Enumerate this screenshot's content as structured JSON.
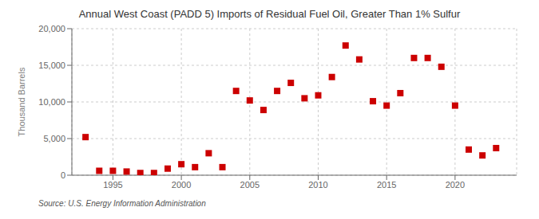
{
  "chart_data": {
    "type": "scatter",
    "title": "Annual West Coast (PADD 5) Imports of Residual Fuel Oil, Greater Than 1% Sulfur",
    "y_label": "Thousand Barrels",
    "annotations": [
      "Source: U.S. Energy Information Administration"
    ],
    "x": [
      1993,
      1994,
      1995,
      1996,
      1997,
      1998,
      1999,
      2000,
      2001,
      2002,
      2003,
      2004,
      2005,
      2006,
      2007,
      2008,
      2009,
      2010,
      2011,
      2012,
      2013,
      2014,
      2015,
      2016,
      2017,
      2018,
      2019,
      2020,
      2021,
      2022,
      2023
    ],
    "values": [
      5200,
      600,
      600,
      500,
      300,
      300,
      900,
      1500,
      1100,
      3000,
      1100,
      11500,
      10200,
      8900,
      11500,
      12600,
      10500,
      10900,
      13400,
      17700,
      15800,
      10100,
      9500,
      11200,
      16000,
      16000,
      14800,
      9500,
      3500,
      2700,
      3700
    ],
    "color": "#cc0000",
    "marker": "square",
    "xlim": [
      1992.0,
      2024.5
    ],
    "xticks": [
      1995,
      2000,
      2005,
      2010,
      2015,
      2020
    ],
    "ylim": [
      0,
      20000
    ],
    "yticks": [
      0,
      {
        "value": 5000,
        "label": "5,000"
      },
      {
        "value": 10000,
        "label": "10,000"
      },
      {
        "value": 15000,
        "label": "15,000"
      },
      {
        "value": 20000,
        "label": "20,000"
      }
    ],
    "grid": true
  }
}
